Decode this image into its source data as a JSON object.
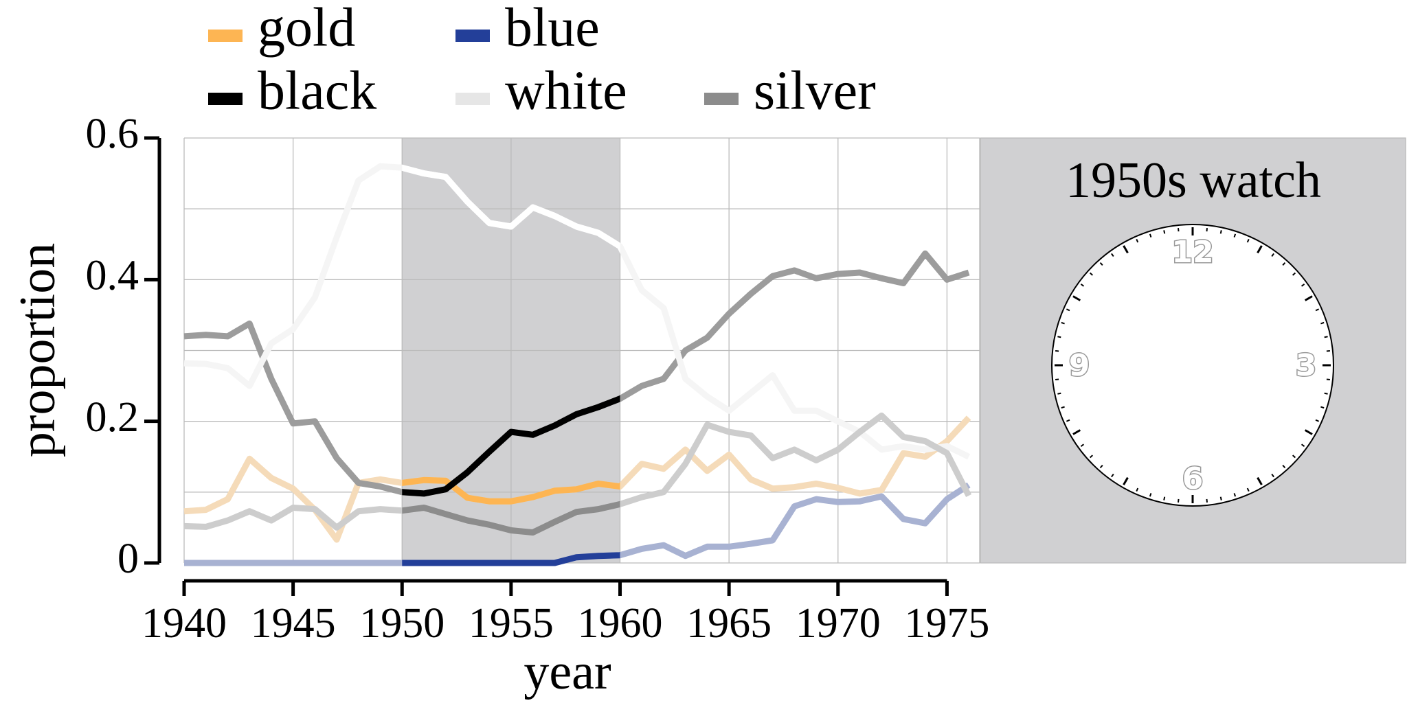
{
  "chart_data": {
    "type": "line",
    "x": [
      1940,
      1941,
      1942,
      1943,
      1944,
      1945,
      1946,
      1947,
      1948,
      1949,
      1950,
      1951,
      1952,
      1953,
      1954,
      1955,
      1956,
      1957,
      1958,
      1959,
      1960,
      1961,
      1962,
      1963,
      1964,
      1965,
      1966,
      1967,
      1968,
      1969,
      1970,
      1971,
      1972,
      1973,
      1974,
      1975,
      1976
    ],
    "series": [
      {
        "name": "gold",
        "color": "#fdb553",
        "values": [
          0.073,
          0.075,
          0.09,
          0.147,
          0.12,
          0.105,
          0.075,
          0.033,
          0.113,
          0.118,
          0.113,
          0.117,
          0.116,
          0.092,
          0.087,
          0.087,
          0.093,
          0.102,
          0.104,
          0.112,
          0.108,
          0.14,
          0.133,
          0.16,
          0.13,
          0.153,
          0.118,
          0.105,
          0.107,
          0.112,
          0.106,
          0.098,
          0.103,
          0.155,
          0.15,
          0.172,
          0.205
        ]
      },
      {
        "name": "blue",
        "color": "#233f99",
        "values": [
          0,
          0,
          0,
          0,
          0,
          0,
          0,
          0,
          0,
          0,
          0,
          0,
          0,
          0,
          0,
          0,
          0,
          0,
          0.008,
          0.01,
          0.011,
          0.02,
          0.025,
          0.01,
          0.023,
          0.023,
          0.027,
          0.032,
          0.08,
          0.09,
          0.086,
          0.087,
          0.094,
          0.062,
          0.056,
          0.09,
          0.11
        ]
      },
      {
        "name": "black",
        "color": "#000000",
        "values": [
          0.32,
          0.322,
          0.32,
          0.338,
          0.26,
          0.197,
          0.2,
          0.148,
          0.113,
          0.108,
          0.1,
          0.098,
          0.104,
          0.128,
          0.157,
          0.185,
          0.181,
          0.194,
          0.21,
          0.22,
          0.232,
          0.25,
          0.26,
          0.3,
          0.318,
          0.352,
          0.38,
          0.405,
          0.413,
          0.402,
          0.408,
          0.41,
          0.402,
          0.395,
          0.437,
          0.4,
          0.41
        ]
      },
      {
        "name": "white",
        "color": "#ffffff",
        "values": [
          0.282,
          0.281,
          0.275,
          0.25,
          0.31,
          0.33,
          0.375,
          0.46,
          0.54,
          0.56,
          0.558,
          0.55,
          0.545,
          0.51,
          0.48,
          0.475,
          0.502,
          0.49,
          0.475,
          0.466,
          0.447,
          0.385,
          0.36,
          0.26,
          0.235,
          0.215,
          0.24,
          0.265,
          0.215,
          0.215,
          0.2,
          0.185,
          0.16,
          0.165,
          0.16,
          0.165,
          0.15
        ]
      },
      {
        "name": "silver",
        "color": "#8c8c8c",
        "values": [
          0.052,
          0.051,
          0.06,
          0.073,
          0.06,
          0.078,
          0.076,
          0.05,
          0.073,
          0.076,
          0.074,
          0.078,
          0.069,
          0.06,
          0.054,
          0.046,
          0.043,
          0.058,
          0.072,
          0.076,
          0.083,
          0.093,
          0.1,
          0.14,
          0.195,
          0.185,
          0.18,
          0.148,
          0.16,
          0.145,
          0.16,
          0.185,
          0.208,
          0.178,
          0.172,
          0.155,
          0.095
        ]
      }
    ],
    "xlabel": "year",
    "ylabel": "proportion",
    "xlim": [
      1940,
      1976.5
    ],
    "ylim": [
      0,
      0.6
    ],
    "xticks": [
      1940,
      1945,
      1950,
      1955,
      1960,
      1965,
      1970,
      1975
    ],
    "yticks": [
      0,
      0.2,
      0.4,
      0.6
    ],
    "minor_yticks": [
      0.1,
      0.3,
      0.5
    ],
    "grid": true,
    "highlight": [
      1950,
      1960
    ],
    "highlight_color": "#d0d0d2",
    "legend": "top",
    "panel": {
      "title": "1950s watch",
      "color": "#d0d0d2",
      "clock_numerals": [
        "12",
        "3",
        "6",
        "9"
      ]
    }
  }
}
